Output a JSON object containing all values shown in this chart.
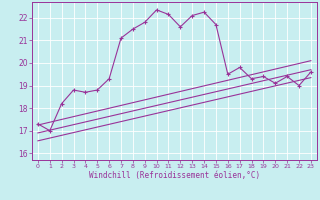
{
  "xlabel": "Windchill (Refroidissement éolien,°C)",
  "bg_color": "#c8eef0",
  "line_color": "#993399",
  "grid_color": "#ffffff",
  "xlim": [
    -0.5,
    23.5
  ],
  "ylim": [
    15.7,
    22.7
  ],
  "yticks": [
    16,
    17,
    18,
    19,
    20,
    21,
    22
  ],
  "xticks": [
    0,
    1,
    2,
    3,
    4,
    5,
    6,
    7,
    8,
    9,
    10,
    11,
    12,
    13,
    14,
    15,
    16,
    17,
    18,
    19,
    20,
    21,
    22,
    23
  ],
  "curve1_x": [
    0,
    1,
    2,
    3,
    4,
    5,
    6,
    7,
    8,
    9,
    10,
    11,
    12,
    13,
    14,
    15,
    16,
    17,
    18,
    19,
    20,
    21,
    22,
    23
  ],
  "curve1_y": [
    17.3,
    17.0,
    18.2,
    18.8,
    18.7,
    18.8,
    19.3,
    21.1,
    21.5,
    21.8,
    22.35,
    22.15,
    21.6,
    22.1,
    22.25,
    21.7,
    19.5,
    19.8,
    19.3,
    19.4,
    19.1,
    19.4,
    19.0,
    19.6
  ],
  "line2_x": [
    0,
    23
  ],
  "line2_y": [
    16.55,
    19.35
  ],
  "line3_x": [
    0,
    23
  ],
  "line3_y": [
    16.9,
    19.7
  ],
  "line4_x": [
    0,
    23
  ],
  "line4_y": [
    17.25,
    20.1
  ]
}
